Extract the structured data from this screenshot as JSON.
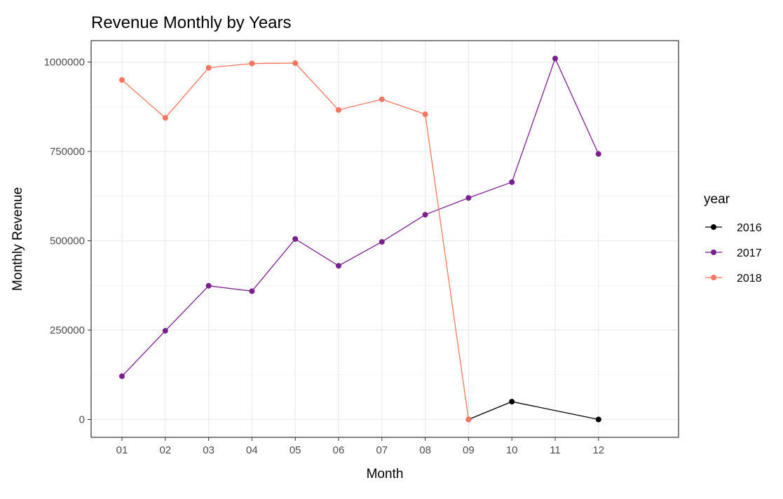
{
  "chart_data": {
    "type": "line",
    "title": "Revenue Monthly by Years",
    "xlabel": "Month",
    "ylabel": "Monthly Revenue",
    "categories": [
      "01",
      "02",
      "03",
      "04",
      "05",
      "06",
      "07",
      "08",
      "09",
      "10",
      "11",
      "12"
    ],
    "y_ticks": [
      0,
      250000,
      500000,
      750000,
      1000000
    ],
    "y_tick_labels": [
      "0",
      "250000",
      "500000",
      "750000",
      "1000000"
    ],
    "ylim": [
      -50000,
      1060000
    ],
    "grid": true,
    "legend": {
      "title": "year",
      "position": "right"
    },
    "series": [
      {
        "name": "2016",
        "color": "#000000",
        "points": [
          {
            "x": "09",
            "y": 0
          },
          {
            "x": "10",
            "y": 49800
          },
          {
            "x": "12",
            "y": 0
          }
        ]
      },
      {
        "name": "2017",
        "color": "#7a1f8e",
        "points": [
          {
            "x": "01",
            "y": 121000
          },
          {
            "x": "02",
            "y": 248000
          },
          {
            "x": "03",
            "y": 374000
          },
          {
            "x": "04",
            "y": 359000
          },
          {
            "x": "05",
            "y": 505000
          },
          {
            "x": "06",
            "y": 430000
          },
          {
            "x": "07",
            "y": 497000
          },
          {
            "x": "08",
            "y": 573000
          },
          {
            "x": "09",
            "y": 620000
          },
          {
            "x": "10",
            "y": 664000
          },
          {
            "x": "11",
            "y": 1010000
          },
          {
            "x": "12",
            "y": 743000
          }
        ]
      },
      {
        "name": "2018",
        "color": "#fa7560",
        "points": [
          {
            "x": "01",
            "y": 950000
          },
          {
            "x": "02",
            "y": 844000
          },
          {
            "x": "03",
            "y": 984000
          },
          {
            "x": "04",
            "y": 996000
          },
          {
            "x": "05",
            "y": 997000
          },
          {
            "x": "06",
            "y": 866000
          },
          {
            "x": "07",
            "y": 896000
          },
          {
            "x": "08",
            "y": 854000
          },
          {
            "x": "09",
            "y": 0
          }
        ]
      }
    ]
  }
}
